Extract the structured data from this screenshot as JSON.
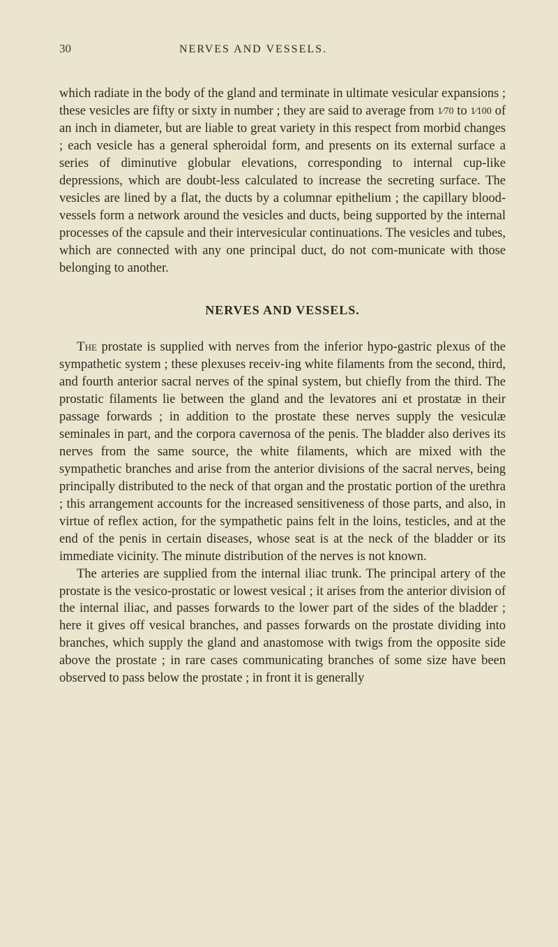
{
  "page_number": "30",
  "header_title": "NERVES AND VESSELS.",
  "paragraph1": "which radiate in the body of the gland and terminate in ultimate vesicular expansions ; these vesicles are fifty or sixty in number ; they are said to average from ",
  "fraction1": "1⁄70",
  "paragraph1b": " to ",
  "fraction2": "1⁄100",
  "paragraph1c": " of an inch in diameter, but are liable to great variety in this respect from morbid changes ; each vesicle has a general spheroidal form, and presents on its external surface a series of diminutive globular elevations, corresponding to internal cup-like depressions, which are doubt-less calculated to increase the secreting surface. The vesicles are lined by a flat, the ducts by a columnar epithelium ; the capillary blood-vessels form a network around the vesicles and ducts, being supported by the internal processes of the capsule and their intervesicular continuations. The vesicles and tubes, which are connected with any one principal duct, do not com-municate with those belonging to another.",
  "section_title": "NERVES AND VESSELS.",
  "the_word": "The",
  "paragraph2": " prostate is supplied with nerves from the inferior hypo-gastric plexus of the sympathetic system ; these plexuses receiv-ing white filaments from the second, third, and fourth anterior sacral nerves of the spinal system, but chiefly from the third. The prostatic filaments lie between the gland and the levatores ani et prostatæ in their passage forwards ; in addition to the prostate these nerves supply the vesiculæ seminales in part, and the corpora cavernosa of the penis. The bladder also derives its nerves from the same source, the white filaments, which are mixed with the sympathetic branches and arise from the anterior divisions of the sacral nerves, being principally distributed to the neck of that organ and the prostatic portion of the urethra ; this arrangement accounts for the increased sensitiveness of those parts, and also, in virtue of reflex action, for the sympathetic pains felt in the loins, testicles, and at the end of the penis in certain diseases, whose seat is at the neck of the bladder or its immediate vicinity. The minute distribution of the nerves is not known.",
  "paragraph3": "The arteries are supplied from the internal iliac trunk. The principal artery of the prostate is the vesico-prostatic or lowest vesical ; it arises from the anterior division of the internal iliac, and passes forwards to the lower part of the sides of the bladder ; here it gives off vesical branches, and passes forwards on the prostate dividing into branches, which supply the gland and anastomose with twigs from the opposite side above the prostate ; in rare cases communicating branches of some size have been observed to pass below the prostate ; in front it is generally",
  "colors": {
    "background": "#ebe4ce",
    "text": "#2a2a20"
  },
  "typography": {
    "body_fontsize": 18.5,
    "header_fontsize": 16,
    "line_height": 1.35
  }
}
